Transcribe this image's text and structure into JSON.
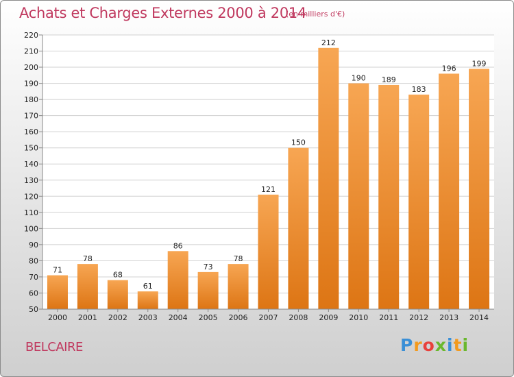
{
  "header": {
    "title": "Achats et Charges Externes 2000 à 2014",
    "unit": "(en milliers d'€)"
  },
  "footer": {
    "commune": "BELCAIRE",
    "logo_text": "Proxiti",
    "logo_letters": [
      {
        "ch": "P",
        "color": "#3a8fd6"
      },
      {
        "ch": "r",
        "color": "#f39a1e"
      },
      {
        "ch": "o",
        "color": "#e8413c"
      },
      {
        "ch": "x",
        "color": "#6ab82d"
      },
      {
        "ch": "i",
        "color": "#3a8fd6"
      },
      {
        "ch": "t",
        "color": "#f39a1e"
      },
      {
        "ch": "i",
        "color": "#6ab82d"
      }
    ]
  },
  "colors": {
    "bar_top": "#f7a653",
    "bar_bottom": "#dd7514",
    "grid": "#d0d0d0",
    "axis": "#888888",
    "text": "#222222"
  },
  "chart_data": {
    "type": "bar",
    "categories": [
      "2000",
      "2001",
      "2002",
      "2003",
      "2004",
      "2005",
      "2006",
      "2007",
      "2008",
      "2009",
      "2010",
      "2011",
      "2012",
      "2013",
      "2014"
    ],
    "values": [
      71,
      78,
      68,
      61,
      86,
      73,
      78,
      121,
      150,
      212,
      190,
      189,
      183,
      196,
      199
    ],
    "ylim": [
      50,
      220
    ],
    "yticks": [
      50,
      60,
      70,
      80,
      90,
      100,
      110,
      120,
      130,
      140,
      150,
      160,
      170,
      180,
      190,
      200,
      210,
      220
    ],
    "grid": true,
    "data_labels": true
  }
}
